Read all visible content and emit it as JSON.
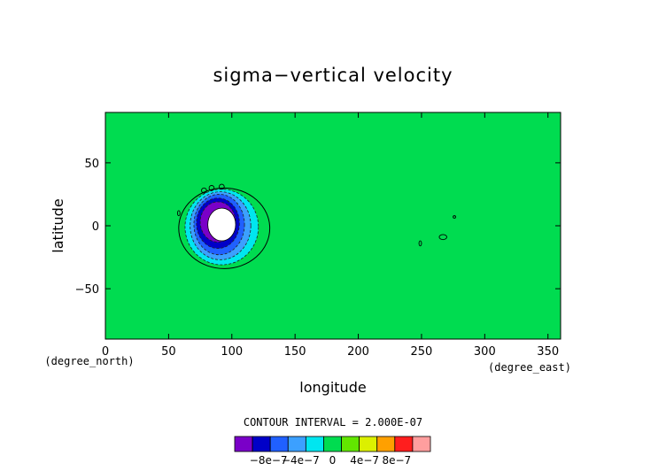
{
  "chart_data": {
    "type": "heatmap",
    "title": "sigma−vertical velocity",
    "xlabel": "longitude",
    "ylabel": "latitude",
    "x_unit": "(degree_east)",
    "y_unit": "(degree_north)",
    "xlim": [
      0,
      360
    ],
    "ylim": [
      -90,
      90
    ],
    "x_ticks": [
      0,
      50,
      100,
      150,
      200,
      250,
      300,
      350
    ],
    "y_ticks": [
      -50,
      0,
      50
    ],
    "contour_interval_text": "CONTOUR INTERVAL = 2.000E-07",
    "background_level": 0,
    "levels": [
      -1e-06,
      -8e-07,
      -6e-07,
      -4e-07,
      -2e-07,
      0,
      2e-07,
      4e-07,
      6e-07,
      8e-07,
      1e-06
    ],
    "colorbar": {
      "colors": [
        "#7a00c8",
        "#0000c8",
        "#2060ff",
        "#3ca0ff",
        "#00e6f0",
        "#00dc50",
        "#62e600",
        "#dcf000",
        "#ffa000",
        "#ff1e1e",
        "#ff9e9e"
      ],
      "labels": [
        "−8e−7",
        "−4e−7",
        "0",
        "4e−7",
        "8e−7"
      ],
      "label_values": [
        -8e-07,
        -4e-07,
        0,
        4e-07,
        8e-07
      ]
    },
    "features": [
      {
        "lon": 92,
        "lat": 1,
        "rx": 11,
        "ry": 13,
        "level": "min",
        "color": "#ffffff"
      },
      {
        "lon": 89,
        "lat": 3,
        "rx": 14,
        "ry": 16,
        "level": -1e-06,
        "color": "#7a00c8"
      },
      {
        "lon": 89,
        "lat": 2,
        "rx": 17,
        "ry": 20,
        "level": -8e-07,
        "color": "#0000c8"
      },
      {
        "lon": 90,
        "lat": 1,
        "rx": 20,
        "ry": 24,
        "level": -6e-07,
        "color": "#2060ff"
      },
      {
        "lon": 91,
        "lat": 0,
        "rx": 24,
        "ry": 27,
        "level": -4e-07,
        "color": "#3ca0ff"
      },
      {
        "lon": 92,
        "lat": -1,
        "rx": 29,
        "ry": 30,
        "level": -2e-07,
        "color": "#00e6f0"
      },
      {
        "lon": 94,
        "lat": -2,
        "rx": 36,
        "ry": 32,
        "level": -2e-08,
        "color": "#00dc50"
      }
    ],
    "small_contours": [
      {
        "lon": 267,
        "lat": -9,
        "rx": 3,
        "ry": 2
      },
      {
        "lon": 249,
        "lat": -14,
        "rx": 1,
        "ry": 2
      },
      {
        "lon": 276,
        "lat": 7,
        "rx": 1,
        "ry": 1
      },
      {
        "lon": 78,
        "lat": 28,
        "rx": 2,
        "ry": 2
      },
      {
        "lon": 84,
        "lat": 30,
        "rx": 2,
        "ry": 2
      },
      {
        "lon": 92,
        "lat": 31,
        "rx": 2,
        "ry": 2
      },
      {
        "lon": 58,
        "lat": 10,
        "rx": 1,
        "ry": 2
      }
    ]
  }
}
